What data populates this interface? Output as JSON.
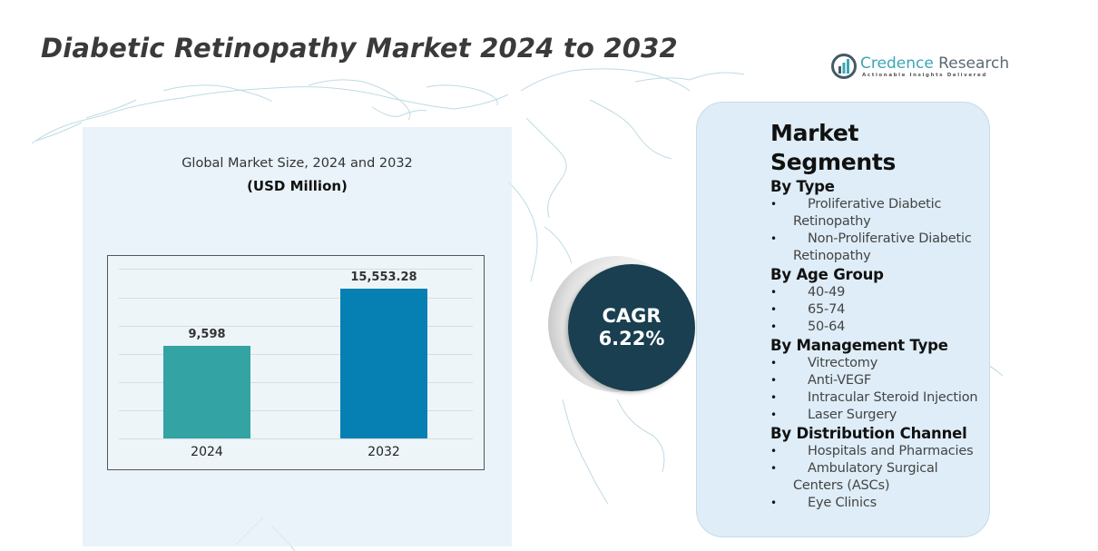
{
  "header": {
    "title": "Diabetic Retinopathy Market 2024 to 2032"
  },
  "logo": {
    "name_part1": "Credence",
    "name_part2": " Research",
    "tagline": "Actionable Insights Delivered",
    "icon": "bar-chart-circle-icon",
    "colors": {
      "teal": "#3ba6b5",
      "slate": "#5a6a75"
    }
  },
  "chart_panel": {
    "subtitle": "Global Market Size, 2024 and 2032",
    "unit": "(USD Million)"
  },
  "chart_data": {
    "type": "bar",
    "title": "Global Market Size, 2024 and 2032",
    "subtitle": "(USD Million)",
    "categories": [
      "2024",
      "2032"
    ],
    "values": [
      9598,
      15553.28
    ],
    "value_labels": [
      "9,598",
      "15,553.28"
    ],
    "colors": [
      "#33a3a3",
      "#0680b2"
    ],
    "xlabel": "",
    "ylabel": "USD Million",
    "ylim": [
      0,
      19000
    ],
    "grid": true,
    "legend": null
  },
  "cagr": {
    "label": "CAGR",
    "value": "6.22%",
    "color": "#193f50"
  },
  "segments": {
    "title": "Market Segments",
    "groups": [
      {
        "heading": "By Type",
        "items": [
          "Proliferative Diabetic Retinopathy",
          "Non-Proliferative Diabetic Retinopathy"
        ]
      },
      {
        "heading": "By Age Group",
        "items": [
          "40-49",
          "65-74",
          "50-64"
        ]
      },
      {
        "heading": "By Management Type",
        "items": [
          "Vitrectomy",
          "Anti-VEGF",
          "Intracular Steroid Injection",
          "Laser Surgery"
        ]
      },
      {
        "heading": "By Distribution Channel",
        "items": [
          "Hospitals and Pharmacies",
          "Ambulatory Surgical Centers (ASCs)",
          "Eye Clinics"
        ]
      }
    ]
  }
}
